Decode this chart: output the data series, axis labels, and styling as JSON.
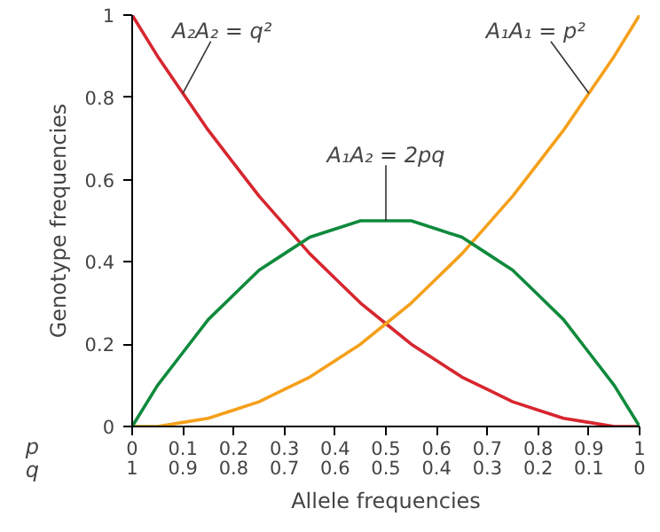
{
  "chart_data": {
    "type": "line",
    "xlabel": "Allele frequencies",
    "ylabel": "Genotype frequencies",
    "x": [
      0,
      0.05,
      0.1,
      0.15,
      0.2,
      0.25,
      0.3,
      0.35,
      0.4,
      0.45,
      0.5,
      0.55,
      0.6,
      0.65,
      0.7,
      0.75,
      0.8,
      0.85,
      0.9,
      0.95,
      1
    ],
    "series": [
      {
        "color": "#d7262f",
        "values": [
          1,
          0.9,
          0.81,
          0.72,
          0.64,
          0.56,
          0.49,
          0.42,
          0.36,
          0.3,
          0.25,
          0.2,
          0.16,
          0.12,
          0.09,
          0.06,
          0.04,
          0.02,
          0.01,
          0,
          0
        ]
      },
      {
        "color": "#f5a01a",
        "values": [
          0,
          0,
          0.01,
          0.02,
          0.04,
          0.06,
          0.09,
          0.12,
          0.16,
          0.2,
          0.25,
          0.3,
          0.36,
          0.42,
          0.49,
          0.56,
          0.64,
          0.72,
          0.81,
          0.9,
          1
        ]
      },
      {
        "color": "#0f8a3c",
        "values": [
          0,
          0.1,
          0.18,
          0.26,
          0.32,
          0.38,
          0.42,
          0.46,
          0.48,
          0.5,
          0.5,
          0.5,
          0.48,
          0.46,
          0.42,
          0.38,
          0.32,
          0.26,
          0.18,
          0.1,
          0
        ]
      }
    ],
    "annotations": [
      {
        "text": "A₂A₂ = q²",
        "x": 0.1,
        "y": 0.81
      },
      {
        "text": "A₁A₁ = p²",
        "x": 0.9,
        "y": 0.81
      },
      {
        "text": "A₁A₂ = 2pq",
        "x": 0.5,
        "y": 0.5
      },
      "p",
      "q"
    ],
    "xlim": [
      0,
      1
    ],
    "xticks": [
      0,
      0.1,
      0.2,
      0.3,
      0.4,
      0.5,
      0.6,
      0.7,
      0.8,
      0.9,
      1
    ],
    "x2lim": [
      1,
      0
    ],
    "x2ticks": [
      1,
      0.9,
      0.8,
      0.7,
      0.6,
      0.5,
      0.4,
      0.3,
      0.2,
      0.1,
      0
    ],
    "ylim": [
      0,
      1
    ],
    "yticks": [
      0,
      0.2,
      0.4,
      0.6,
      0.8,
      1
    ],
    "grid": false,
    "marker": "none",
    "line_style": "solid"
  }
}
